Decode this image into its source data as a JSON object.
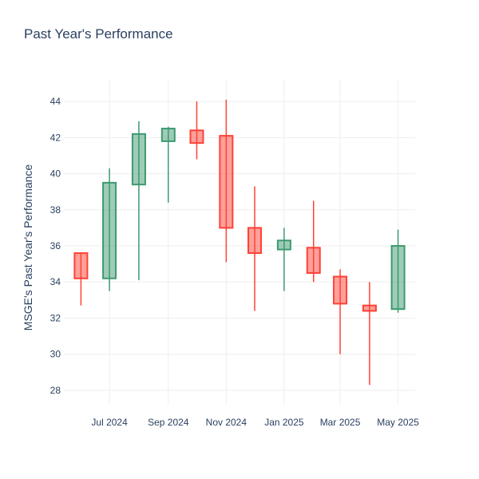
{
  "chart_data": {
    "type": "candlestick",
    "title": "Past Year's Performance",
    "xlabel": "",
    "ylabel": "MSGE's Past Year's Performance",
    "ylim": [
      27.2,
      45.2
    ],
    "y_ticks": [
      28,
      30,
      32,
      34,
      36,
      38,
      40,
      42,
      44
    ],
    "x_ticks": [
      {
        "label": "Jul 2024",
        "date": "2024-07-01"
      },
      {
        "label": "Sep 2024",
        "date": "2024-09-01"
      },
      {
        "label": "Nov 2024",
        "date": "2024-11-01"
      },
      {
        "label": "Jan 2025",
        "date": "2025-01-01"
      },
      {
        "label": "Mar 2025",
        "date": "2025-03-01"
      },
      {
        "label": "May 2025",
        "date": "2025-05-01"
      }
    ],
    "grid": true,
    "increasing_color": "#3d9970",
    "decreasing_color": "#ff4136",
    "candles": [
      {
        "date": "2024-06-01",
        "open": 35.6,
        "high": 35.6,
        "low": 32.7,
        "close": 34.2
      },
      {
        "date": "2024-07-01",
        "open": 34.2,
        "high": 40.3,
        "low": 33.5,
        "close": 39.5
      },
      {
        "date": "2024-08-01",
        "open": 39.4,
        "high": 42.9,
        "low": 34.1,
        "close": 42.2
      },
      {
        "date": "2024-09-01",
        "open": 41.8,
        "high": 42.6,
        "low": 38.4,
        "close": 42.5
      },
      {
        "date": "2024-10-01",
        "open": 42.4,
        "high": 44.0,
        "low": 40.8,
        "close": 41.7
      },
      {
        "date": "2024-11-01",
        "open": 42.1,
        "high": 44.1,
        "low": 35.1,
        "close": 37.0
      },
      {
        "date": "2024-12-01",
        "open": 37.0,
        "high": 39.3,
        "low": 32.4,
        "close": 35.6
      },
      {
        "date": "2025-01-01",
        "open": 35.8,
        "high": 37.0,
        "low": 33.5,
        "close": 36.3
      },
      {
        "date": "2025-02-01",
        "open": 35.9,
        "high": 38.5,
        "low": 34.0,
        "close": 34.5
      },
      {
        "date": "2025-03-01",
        "open": 34.3,
        "high": 34.7,
        "low": 30.0,
        "close": 32.8
      },
      {
        "date": "2025-04-01",
        "open": 32.7,
        "high": 34.0,
        "low": 28.3,
        "close": 32.4
      },
      {
        "date": "2025-05-01",
        "open": 32.5,
        "high": 36.9,
        "low": 32.3,
        "close": 36.0
      }
    ]
  }
}
